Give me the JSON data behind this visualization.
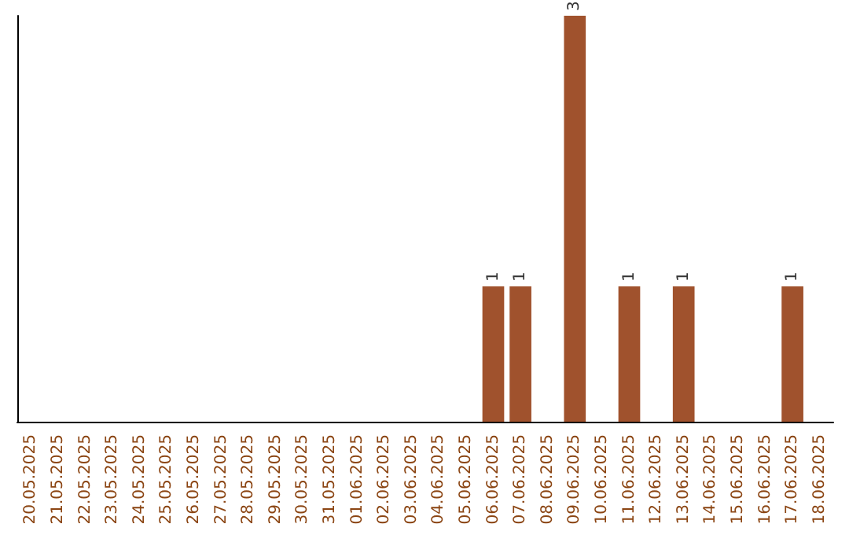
{
  "chart_data": {
    "type": "bar",
    "categories": [
      "20.05.2025",
      "21.05.2025",
      "22.05.2025",
      "23.05.2025",
      "24.05.2025",
      "25.05.2025",
      "26.05.2025",
      "27.05.2025",
      "28.05.2025",
      "29.05.2025",
      "30.05.2025",
      "31.05.2025",
      "01.06.2025",
      "02.06.2025",
      "03.06.2025",
      "04.06.2025",
      "05.06.2025",
      "06.06.2025",
      "07.06.2025",
      "08.06.2025",
      "09.06.2025",
      "10.06.2025",
      "11.06.2025",
      "12.06.2025",
      "13.06.2025",
      "14.06.2025",
      "15.06.2025",
      "16.06.2025",
      "17.06.2025",
      "18.06.2025"
    ],
    "values": [
      null,
      null,
      null,
      null,
      null,
      null,
      null,
      null,
      null,
      null,
      null,
      null,
      null,
      null,
      null,
      null,
      null,
      1,
      1,
      null,
      3,
      null,
      1,
      null,
      1,
      null,
      null,
      null,
      1,
      null
    ],
    "color": "#a0522d",
    "data_labels": true,
    "tick_labels": "x"
  }
}
